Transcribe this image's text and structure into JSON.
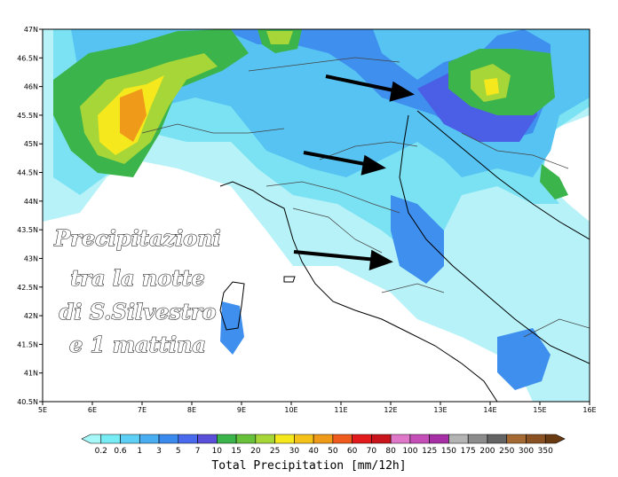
{
  "map": {
    "caption": [
      "Precipitazioni",
      "tra la notte",
      "di S.Silvestro",
      "e 1 mattina"
    ],
    "lat_labels": [
      "47N",
      "46.5N",
      "46N",
      "45.5N",
      "45N",
      "44.5N",
      "44N",
      "43.5N",
      "43N",
      "42.5N",
      "42N",
      "41.5N",
      "41N",
      "40.5N"
    ],
    "lon_labels": [
      "5E",
      "6E",
      "7E",
      "8E",
      "9E",
      "10E",
      "11E",
      "12E",
      "13E",
      "14E",
      "15E",
      "16E"
    ]
  },
  "colorbar": {
    "title": "Total Precipitation [mm/12h]",
    "labels": [
      "0.2",
      "0.6",
      "1",
      "3",
      "5",
      "7",
      "10",
      "15",
      "20",
      "25",
      "30",
      "40",
      "50",
      "60",
      "70",
      "80",
      "100",
      "125",
      "150",
      "175",
      "200",
      "250",
      "300",
      "350"
    ],
    "colors": [
      "#a6f7f7",
      "#78ecf5",
      "#5fd0f5",
      "#4aaef2",
      "#3b8bef",
      "#4a6aee",
      "#5a4fd9",
      "#3cb44c",
      "#67c13a",
      "#a6d637",
      "#f5e81d",
      "#f5c21a",
      "#f09a1a",
      "#ef5a1d",
      "#e31a1c",
      "#c8141a",
      "#df78c8",
      "#c44fb8",
      "#a62fa6",
      "#b4b4b4",
      "#8c8c8c",
      "#646464",
      "#a56a34",
      "#8a5222",
      "#6a3a12"
    ]
  }
}
